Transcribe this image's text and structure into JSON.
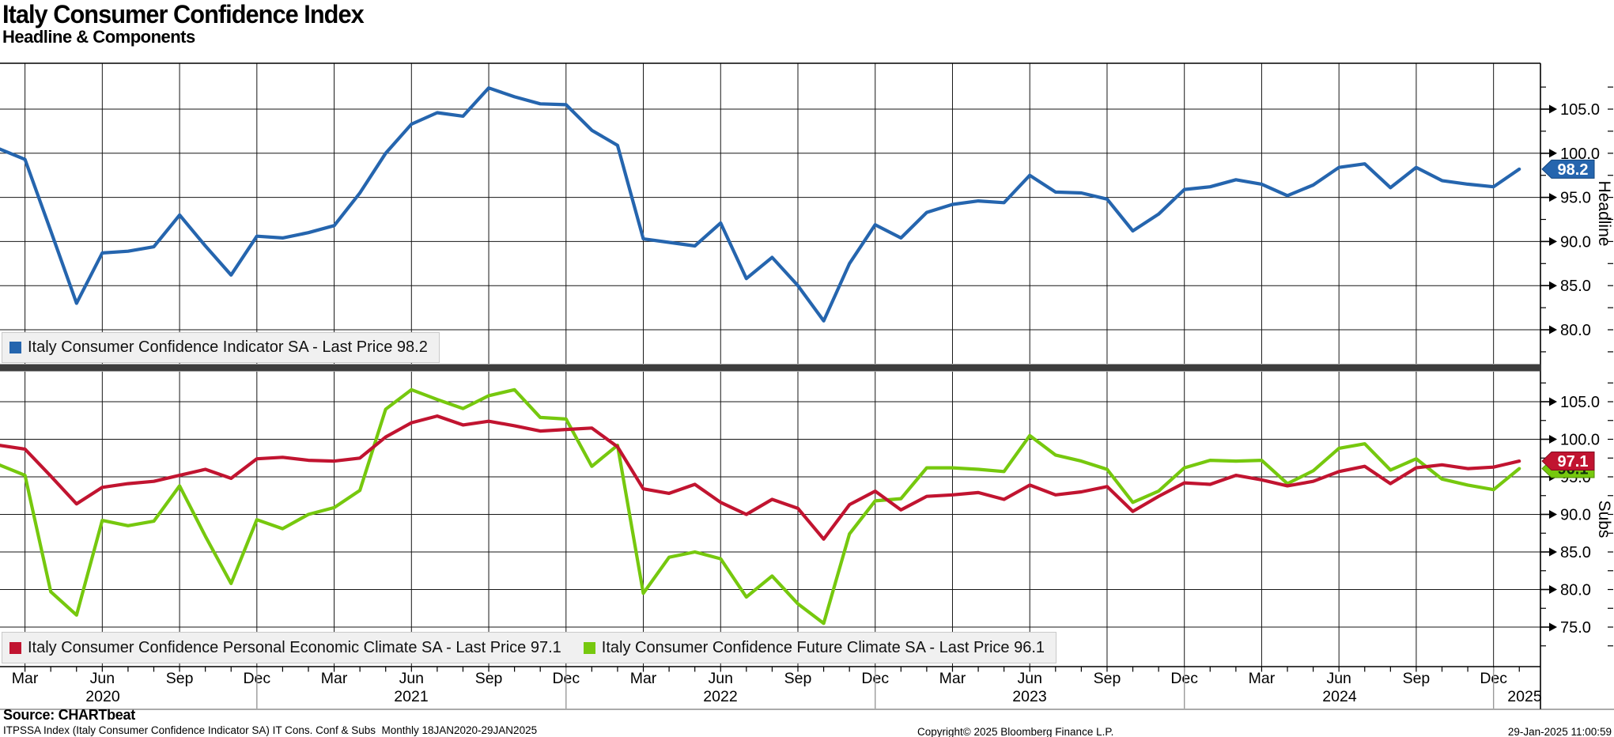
{
  "header": {
    "title": "Italy Consumer Confidence Index",
    "subtitle": "Headline & Components"
  },
  "legend": {
    "headline": {
      "label": "Italy Consumer Confidence Indicator SA - Last Price 98.2",
      "color": "#2565ae"
    },
    "personal": {
      "label": "Italy Consumer Confidence Personal Economic Climate SA - Last Price 97.1",
      "color": "#c11430"
    },
    "future": {
      "label": "Italy Consumer Confidence Future Climate SA - Last Price 96.1",
      "color": "#76c80e"
    }
  },
  "chart_data": {
    "type": "line",
    "frequency": "monthly",
    "x_tick_labels": [
      "Mar",
      "Jun",
      "Sep",
      "Dec"
    ],
    "year_labels": [
      "2020",
      "2021",
      "2022",
      "2023",
      "2024",
      "2025"
    ],
    "months": [
      "2020-01",
      "2020-02",
      "2020-03",
      "2020-04",
      "2020-05",
      "2020-06",
      "2020-07",
      "2020-08",
      "2020-09",
      "2020-10",
      "2020-11",
      "2020-12",
      "2021-01",
      "2021-02",
      "2021-03",
      "2021-04",
      "2021-05",
      "2021-06",
      "2021-07",
      "2021-08",
      "2021-09",
      "2021-10",
      "2021-11",
      "2021-12",
      "2022-01",
      "2022-02",
      "2022-03",
      "2022-04",
      "2022-05",
      "2022-06",
      "2022-07",
      "2022-08",
      "2022-09",
      "2022-10",
      "2022-11",
      "2022-12",
      "2023-01",
      "2023-02",
      "2023-03",
      "2023-04",
      "2023-05",
      "2023-06",
      "2023-07",
      "2023-08",
      "2023-09",
      "2023-10",
      "2023-11",
      "2023-12",
      "2024-01",
      "2024-02",
      "2024-03",
      "2024-04",
      "2024-05",
      "2024-06",
      "2024-07",
      "2024-08",
      "2024-09",
      "2024-10",
      "2024-11",
      "2024-12",
      "2025-01"
    ],
    "panels": [
      {
        "name": "Headline",
        "axis_side": "right",
        "y_ticks": [
          105,
          100,
          95,
          90,
          85,
          80
        ],
        "series": [
          {
            "name": "Italy Consumer Confidence Indicator SA",
            "color": "#2565ae",
            "last_price": 98.2,
            "badge_text_color": "#ffffff",
            "badge_border": "#12467f",
            "values": [
              100.8,
              100.5,
              99.3,
              91.2,
              83.0,
              88.7,
              88.9,
              89.4,
              93.0,
              89.5,
              86.2,
              90.6,
              90.4,
              91.0,
              91.8,
              95.5,
              100.0,
              103.3,
              104.6,
              104.2,
              107.4,
              106.4,
              105.6,
              105.5,
              102.6,
              100.9,
              90.3,
              89.9,
              89.5,
              92.1,
              85.8,
              88.2,
              85.0,
              81.0,
              87.5,
              91.9,
              90.4,
              93.3,
              94.2,
              94.6,
              94.4,
              97.5,
              95.6,
              95.5,
              94.8,
              91.2,
              93.1,
              95.9,
              96.2,
              97.0,
              96.5,
              95.2,
              96.4,
              98.4,
              98.8,
              96.1,
              98.4,
              96.9,
              96.5,
              96.2,
              98.2
            ]
          }
        ]
      },
      {
        "name": "Subs",
        "axis_side": "right",
        "y_ticks": [
          105,
          100,
          95,
          90,
          85,
          80,
          75
        ],
        "series": [
          {
            "name": "Italy Consumer Confidence Future Climate SA",
            "color": "#76c80e",
            "last_price": 96.1,
            "badge_text_color": "#10330a",
            "badge_border": "#4e8c00",
            "values": [
              97.2,
              96.6,
              95.2,
              79.7,
              76.6,
              89.2,
              88.5,
              89.1,
              93.8,
              87.1,
              80.8,
              89.3,
              88.1,
              90.0,
              90.9,
              93.2,
              104.0,
              106.6,
              105.3,
              104.1,
              105.8,
              106.6,
              102.9,
              102.7,
              96.4,
              99.2,
              79.5,
              84.3,
              85.0,
              84.1,
              79.0,
              81.8,
              78.1,
              75.5,
              87.4,
              91.8,
              92.1,
              96.2,
              96.2,
              96.0,
              95.7,
              100.5,
              97.9,
              97.1,
              96.0,
              91.6,
              93.1,
              96.2,
              97.2,
              97.1,
              97.2,
              94.1,
              95.8,
              98.8,
              99.4,
              95.9,
              97.4,
              94.7,
              93.9,
              93.3,
              96.1
            ]
          },
          {
            "name": "Italy Consumer Confidence Personal Economic Climate SA",
            "color": "#c11430",
            "last_price": 97.1,
            "badge_text_color": "#ffffff",
            "badge_border": "#7e0c1f",
            "values": [
              99.5,
              99.2,
              98.7,
              95.1,
              91.4,
              93.6,
              94.1,
              94.4,
              95.2,
              96.0,
              94.8,
              97.4,
              97.6,
              97.2,
              97.1,
              97.5,
              100.3,
              102.2,
              103.1,
              101.9,
              102.4,
              101.8,
              101.1,
              101.3,
              101.5,
              99.0,
              93.4,
              92.8,
              94.0,
              91.6,
              90.0,
              92.0,
              90.8,
              86.7,
              91.3,
              93.1,
              90.6,
              92.4,
              92.6,
              92.9,
              92.0,
              93.9,
              92.6,
              93.0,
              93.7,
              90.4,
              92.4,
              94.2,
              94.0,
              95.2,
              94.6,
              93.8,
              94.4,
              95.7,
              96.4,
              94.1,
              96.2,
              96.6,
              96.1,
              96.3,
              97.1
            ]
          }
        ]
      }
    ]
  },
  "footer": {
    "source": "Source: CHARTbeat",
    "disclaimer": "ITPSSA Index (Italy Consumer Confidence Indicator SA) IT Cons. Conf & Subs  Monthly 18JAN2020-29JAN2025",
    "copyright": "Copyright© 2025 Bloomberg Finance L.P.",
    "timestamp": "29-Jan-2025 11:00:59"
  }
}
